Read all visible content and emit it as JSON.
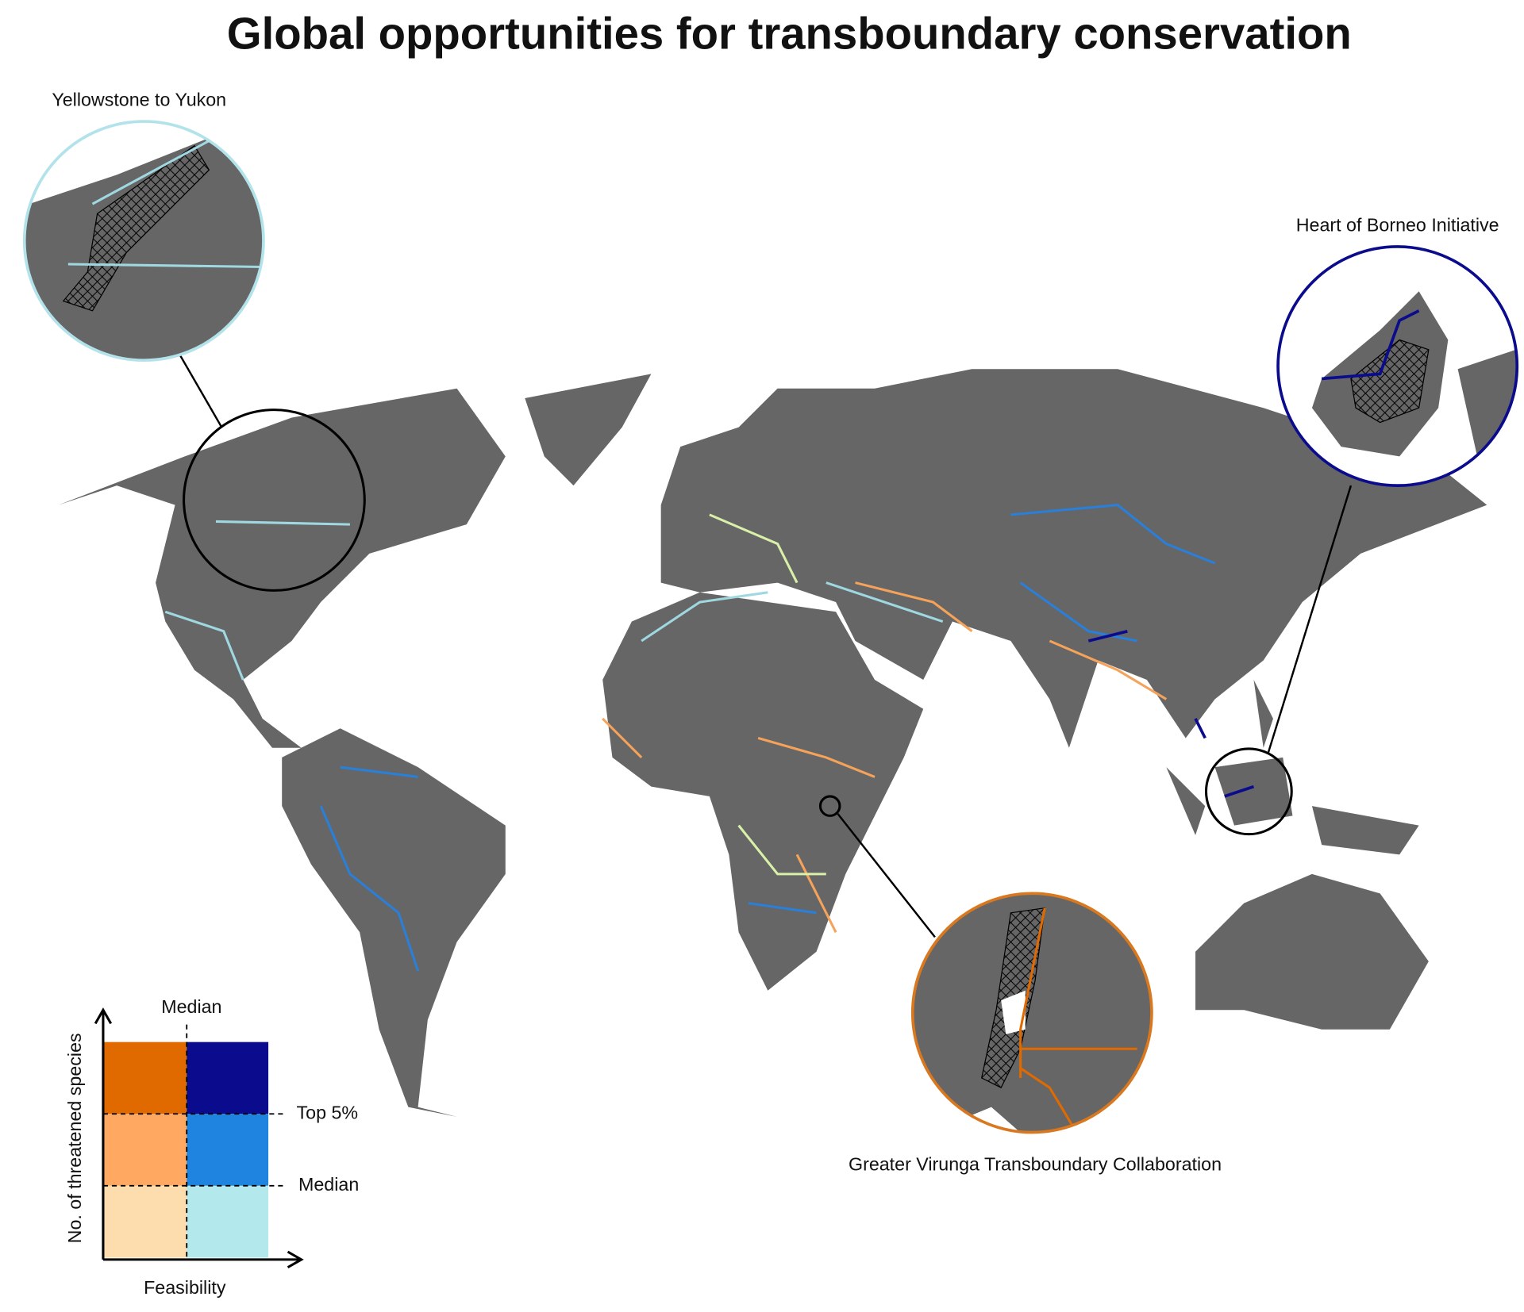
{
  "title": "Global opportunities for transboundary conservation",
  "insets": [
    {
      "label": "Yellowstone to Yukon"
    },
    {
      "label": "Heart of Borneo Initiative"
    },
    {
      "label": "Greater Virunga Transboundary Collaboration"
    }
  ],
  "legend": {
    "y_label": "No. of threatened species",
    "x_label": "Feasibility",
    "median_top": "Median",
    "top5": "Top 5%",
    "median_right": "Median"
  }
}
